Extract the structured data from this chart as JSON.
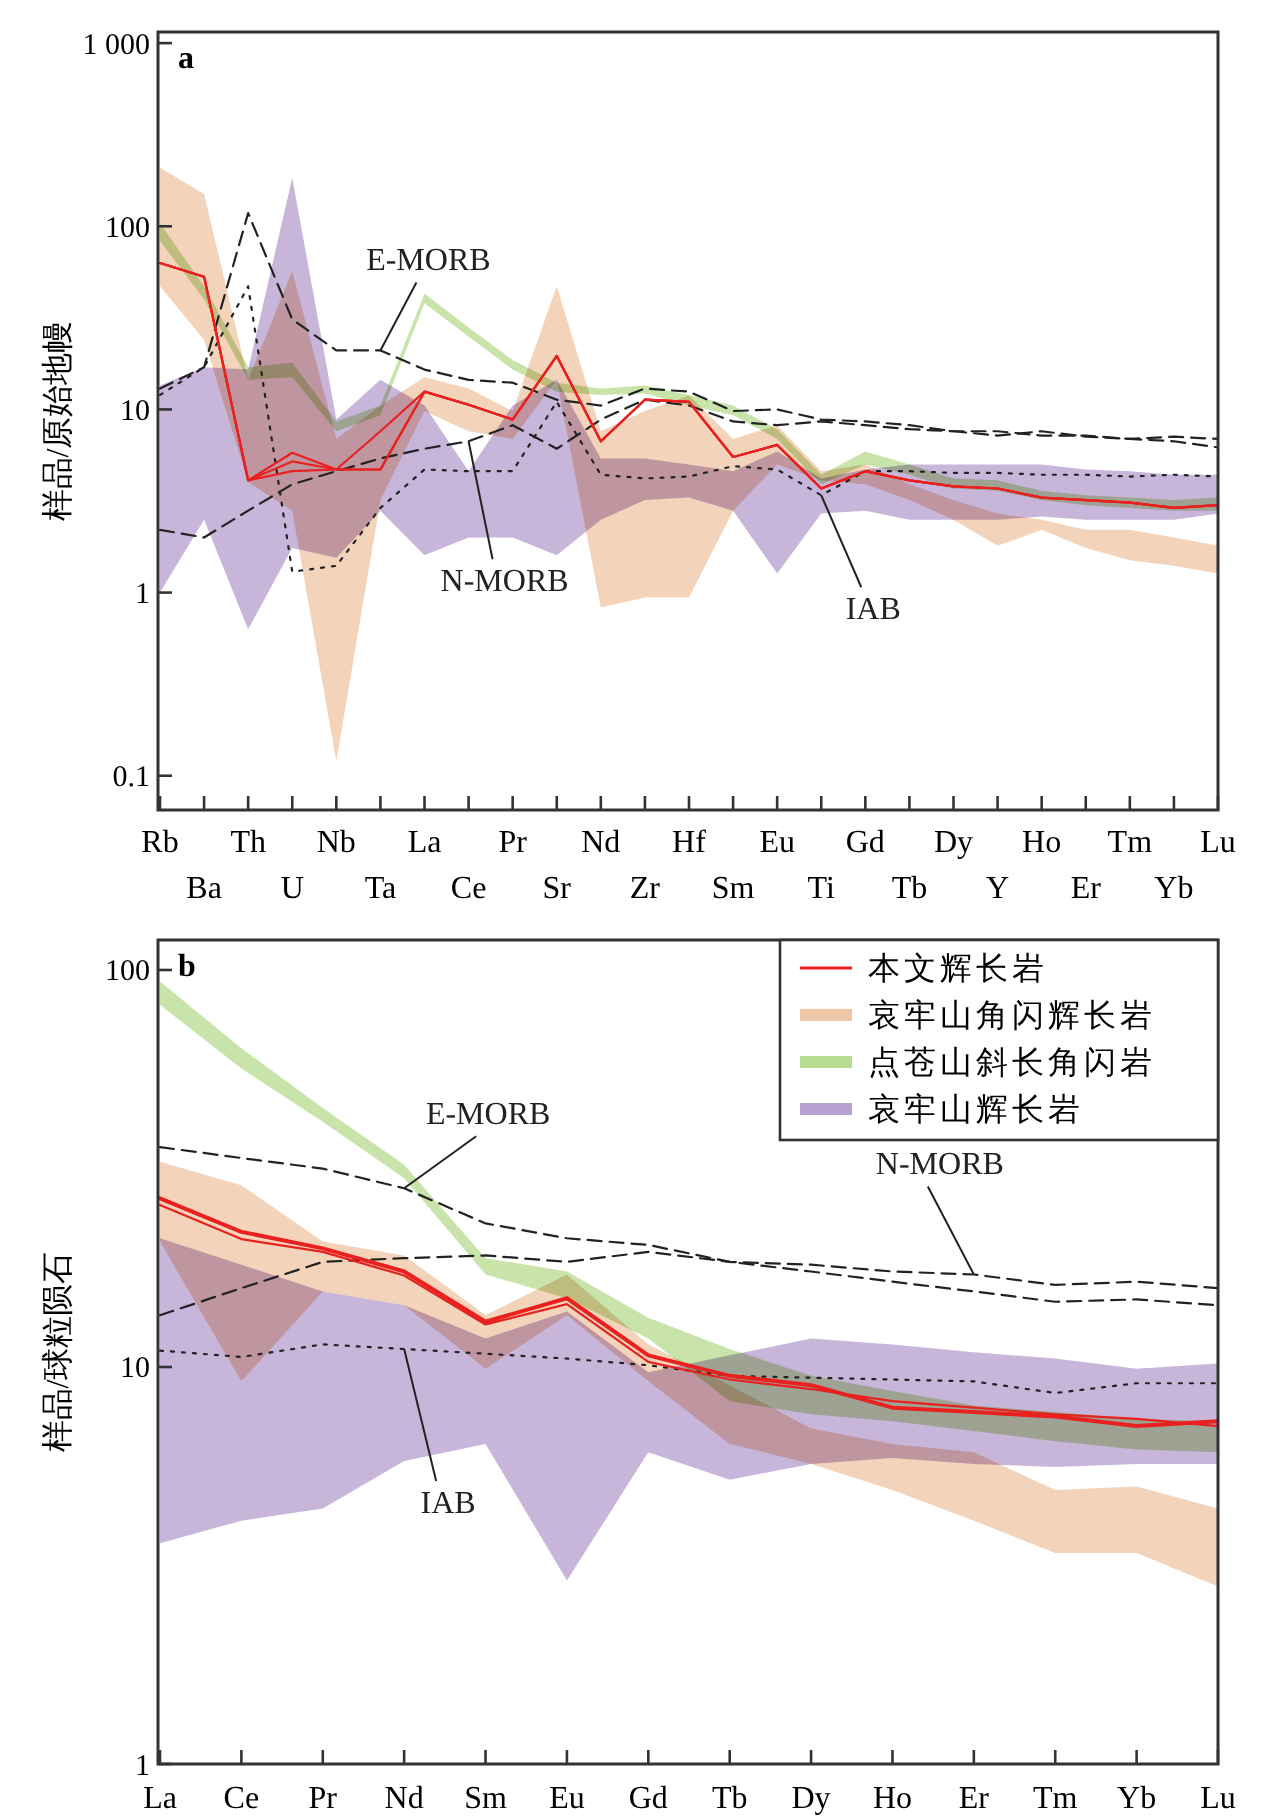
{
  "chart_data": [
    {
      "type": "line",
      "title": "a",
      "ylabel": "样品/原始地幔",
      "log": true,
      "legend": false,
      "grid": false,
      "marker": "none",
      "categories": [
        "Rb",
        "Ba",
        "Th",
        "U",
        "Nb",
        "Ta",
        "La",
        "Ce",
        "Pr",
        "Sr",
        "Nd",
        "Zr",
        "Hf",
        "Sm",
        "Eu",
        "Ti",
        "Gd",
        "Tb",
        "Dy",
        "Y",
        "Ho",
        "Er",
        "Tm",
        "Yb",
        "Lu"
      ],
      "ylim": [
        0.065,
        1150
      ],
      "yticks": [
        {
          "value": 0.1,
          "label": "0.1"
        },
        1,
        10,
        100,
        {
          "value": 1000,
          "label": "1 000"
        }
      ],
      "series": [
        {
          "type": "area",
          "color": "#efc6a6",
          "values": [
            null,
            null,
            null,
            null,
            null,
            null,
            null,
            null,
            null,
            null,
            null,
            null,
            null,
            null,
            null,
            null,
            null,
            null,
            null,
            null,
            null,
            null,
            null,
            null,
            null
          ],
          "upper": [
            209,
            150,
            14.5,
            57,
            6.9,
            10.5,
            15,
            13,
            9.8,
            47,
            7.6,
            9.8,
            11.9,
            6.9,
            8.2,
            4.6,
            5.0,
            3.9,
            3.2,
            2.7,
            2.5,
            2.2,
            2.2,
            2.0,
            1.8
          ],
          "lower": [
            47,
            24,
            4.0,
            2.8,
            0.12,
            3.2,
            9.8,
            7.6,
            6.9,
            14.5,
            0.83,
            0.94,
            0.94,
            2.8,
            5.0,
            4.1,
            3.9,
            3.2,
            2.5,
            1.8,
            2.2,
            1.75,
            1.5,
            1.4,
            1.27
          ]
        },
        {
          "type": "area",
          "color": "#b8a0d0",
          "values": [
            null,
            null,
            null,
            null,
            null,
            null,
            null,
            null,
            null,
            null,
            null,
            null,
            null,
            null,
            null,
            null,
            null,
            null,
            null,
            null,
            null,
            null,
            null,
            null,
            null
          ],
          "upper": [
            13.5,
            17,
            16.5,
            184,
            8.8,
            14.5,
            10.5,
            4.6,
            10.5,
            14.5,
            5.4,
            5.4,
            5.0,
            4.6,
            5.9,
            4.2,
            4.7,
            5.0,
            5.0,
            5.0,
            5.0,
            4.7,
            4.6,
            4.4,
            4.4
          ],
          "lower": [
            1.0,
            2.5,
            0.63,
            1.75,
            1.55,
            2.8,
            1.6,
            2.0,
            2.0,
            1.6,
            2.5,
            3.2,
            3.3,
            2.8,
            1.27,
            2.7,
            2.8,
            2.5,
            2.5,
            2.5,
            2.6,
            2.5,
            2.5,
            2.5,
            2.7
          ]
        },
        {
          "type": "area",
          "color": "#b9dc93",
          "values": [
            null,
            null,
            null,
            null,
            null,
            null,
            null,
            null,
            null,
            null,
            null,
            null,
            null,
            null,
            null,
            null,
            null,
            null,
            null,
            null,
            null,
            null,
            null,
            null,
            null
          ],
          "upper": [
            104,
            47,
            17,
            18,
            8.6,
            10.5,
            43,
            28,
            18.6,
            14,
            13,
            13.5,
            12,
            10.5,
            7.8,
            4.4,
            5.9,
            5.0,
            4.2,
            4.1,
            3.6,
            3.4,
            3.3,
            3.2,
            3.3
          ],
          "lower": [
            83,
            40,
            14.5,
            15,
            7.6,
            9.3,
            38,
            25,
            16.5,
            12.5,
            12,
            12.2,
            10.5,
            9.3,
            6.9,
            3.9,
            5.0,
            4.4,
            3.7,
            3.6,
            3.2,
            3.0,
            2.9,
            2.8,
            2.8
          ]
        },
        {
          "name": "E-MORB",
          "color": "#222222",
          "line_style": "dashed",
          "values": [
            13,
            17,
            118,
            31,
            21,
            21,
            16.5,
            14.5,
            14,
            11.3,
            10.5,
            13,
            12.5,
            9.8,
            10,
            8.8,
            8.6,
            8.2,
            7.6,
            7.2,
            7.6,
            7.1,
            6.9,
            6.7,
            6.2
          ]
        },
        {
          "name": "N-MORB",
          "color": "#222222",
          "line_style": "dashed",
          "values": [
            2.2,
            2.0,
            2.8,
            3.9,
            4.6,
            5.4,
            6.1,
            6.7,
            8.2,
            6.1,
            8.8,
            11.3,
            10.5,
            8.6,
            8.2,
            8.6,
            8.2,
            7.8,
            7.6,
            7.6,
            7.2,
            7.2,
            6.9,
            7.1,
            6.9
          ]
        },
        {
          "name": "IAB",
          "color": "#222222",
          "line_style": "dotted",
          "values": [
            12,
            17,
            47,
            1.3,
            1.4,
            2.9,
            4.7,
            4.6,
            4.6,
            11,
            4.4,
            4.2,
            4.3,
            4.9,
            4.7,
            3.4,
            4.6,
            4.6,
            4.5,
            4.5,
            4.4,
            4.4,
            4.3,
            4.4,
            4.3
          ]
        },
        {
          "color": "#e8211f",
          "values": [
            63,
            53,
            4.1,
            5.8,
            4.7,
            7.6,
            12.5,
            10.6,
            8.8,
            19.6,
            6.7,
            11.3,
            11,
            5.5,
            6.4,
            3.7,
            4.6,
            4.1,
            3.8,
            3.7,
            3.3,
            3.2,
            3.1,
            2.9,
            3.0
          ]
        },
        {
          "color": "#e8211f",
          "values": [
            63,
            53,
            4.1,
            5.2,
            4.7,
            4.7,
            12.5,
            10.6,
            8.8,
            19.6,
            6.7,
            11.3,
            11,
            5.5,
            6.4,
            3.7,
            4.6,
            4.1,
            3.8,
            3.7,
            3.3,
            3.2,
            3.1,
            2.9,
            3.0
          ]
        },
        {
          "color": "#e8211f",
          "values": [
            63,
            53,
            4.1,
            4.6,
            4.7,
            4.7,
            12.5,
            10.6,
            8.8,
            19.6,
            6.7,
            11.3,
            11,
            5.5,
            6.4,
            3.7,
            4.6,
            4.1,
            3.8,
            3.7,
            3.3,
            3.2,
            3.1,
            2.9,
            3.0
          ]
        }
      ]
    },
    {
      "type": "line",
      "title": "b",
      "ylabel": "样品/球粒陨石",
      "log": true,
      "legend": "top right",
      "grid": false,
      "marker": "none",
      "categories": [
        "La",
        "Ce",
        "Pr",
        "Nd",
        "Sm",
        "Eu",
        "Gd",
        "Tb",
        "Dy",
        "Ho",
        "Er",
        "Tm",
        "Yb",
        "Lu"
      ],
      "ylim": [
        1,
        119
      ],
      "yticks": [
        1,
        10,
        100
      ],
      "series": [
        {
          "type": "area",
          "name": "哀牢山角闪辉长岩",
          "color": "#efc6a6",
          "values": [
            null,
            null,
            null,
            null,
            null,
            null,
            null,
            null,
            null,
            null,
            null,
            null,
            null,
            null
          ],
          "upper": [
            32.9,
            28.7,
            20.7,
            19.1,
            13.5,
            17.1,
            11.4,
            9.0,
            7.0,
            6.4,
            6.1,
            4.9,
            5.0,
            4.4
          ],
          "lower": [
            20.7,
            9.2,
            15.5,
            14.3,
            9.9,
            13.5,
            9.2,
            6.4,
            5.7,
            4.9,
            4.1,
            3.4,
            3.4,
            2.8
          ]
        },
        {
          "type": "area",
          "name": "点苍山斜长角闪岩",
          "color": "#b9dc93",
          "values": [
            null,
            null,
            null,
            null,
            null,
            null,
            null,
            null,
            null,
            null,
            null,
            null,
            null,
            null
          ],
          "upper": [
            93.5,
            63.5,
            44.9,
            32.3,
            18.8,
            17.4,
            13.3,
            11.1,
            9.5,
            8.7,
            8.0,
            7.7,
            7.4,
            7.3
          ],
          "lower": [
            81.7,
            56.5,
            41.5,
            29.9,
            17.1,
            14.9,
            11.8,
            8.2,
            7.6,
            7.3,
            6.9,
            6.5,
            6.2,
            6.1
          ]
        },
        {
          "type": "area",
          "name": "哀牢山辉长岩",
          "color": "#b8a0d0",
          "values": [
            null,
            null,
            null,
            null,
            null,
            null,
            null,
            null,
            null,
            null,
            null,
            null,
            null,
            null
          ],
          "upper": [
            21.1,
            18.1,
            15.5,
            14.3,
            11.8,
            13.8,
            9.7,
            10.7,
            11.8,
            11.4,
            10.9,
            10.5,
            9.9,
            10.2
          ],
          "lower": [
            3.6,
            4.1,
            4.4,
            5.8,
            6.4,
            2.9,
            6.1,
            5.2,
            5.7,
            5.9,
            5.7,
            5.6,
            5.7,
            5.7
          ]
        },
        {
          "name": "E-MORB",
          "color": "#222222",
          "line_style": "dashed",
          "values": [
            35.8,
            33.6,
            31.6,
            28.2,
            23.0,
            21.1,
            20.3,
            18.4,
            17.4,
            16.4,
            15.5,
            14.6,
            14.8,
            14.3
          ]
        },
        {
          "name": "N-MORB",
          "color": "#222222",
          "line_style": "dashed",
          "values": [
            13.5,
            15.8,
            18.4,
            18.8,
            19.1,
            18.4,
            19.5,
            18.4,
            18.1,
            17.4,
            17.1,
            16.1,
            16.4,
            15.8
          ]
        },
        {
          "name": "IAB",
          "color": "#222222",
          "line_style": "dotted",
          "values": [
            11.0,
            10.6,
            11.4,
            11.1,
            10.8,
            10.5,
            10.1,
            9.5,
            9.4,
            9.3,
            9.2,
            8.6,
            9.1,
            9.1
          ]
        },
        {
          "name": "本文辉长岩",
          "color": "#e8211f",
          "values": [
            26.6,
            21.9,
            19.9,
            17.4,
            13.0,
            14.9,
            10.7,
            9.5,
            9.0,
            7.9,
            7.7,
            7.5,
            7.1,
            7.3
          ]
        },
        {
          "color": "#e8211f",
          "values": [
            25.6,
            21,
            19.5,
            17,
            12.8,
            14.4,
            10.3,
            9.3,
            8.8,
            8.2,
            7.9,
            7.6,
            7.4,
            7.1
          ]
        }
      ]
    }
  ]
}
